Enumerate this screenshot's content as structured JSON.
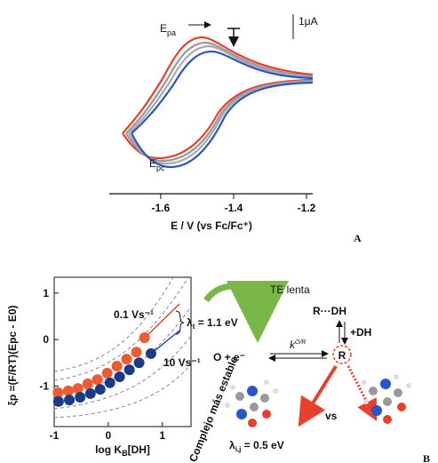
{
  "chart_data": [
    {
      "type": "cv",
      "xlabel": "E / V (vs Fc/Fc⁺)",
      "xlim": [
        -1.741,
        -1.183
      ],
      "xticks": [
        -1.6,
        -1.4,
        -1.2
      ],
      "scale_bar": "1μA",
      "epa": {
        "base": "E",
        "sub": "pa"
      },
      "epc": {
        "base": "E",
        "sub": "pc"
      },
      "panel_label": "A"
    },
    {
      "type": "scatter",
      "xlabel": {
        "base": "log K",
        "sub": "B",
        "rest": "[DH]"
      },
      "ylabel": "ξp =(F/RT)(Epc - E0)",
      "xlim": [
        -1.0,
        1.53
      ],
      "ylim": [
        -1.87,
        1.34
      ],
      "xticks": [
        -1,
        0,
        1
      ],
      "yticks": [
        -1,
        0,
        1
      ],
      "series": [
        {
          "name": "0.1 Vs⁻¹",
          "color": "#f05a30",
          "x": [
            -0.93,
            -0.74,
            -0.56,
            -0.38,
            -0.2,
            -0.02,
            0.16,
            0.34,
            0.52,
            0.67
          ],
          "values": [
            -1.14,
            -1.1,
            -1.05,
            -0.95,
            -0.86,
            -0.72,
            -0.57,
            -0.42,
            -0.27,
            0.04
          ]
        },
        {
          "name": "10 Vs⁻¹",
          "color": "#1a3a8a",
          "x": [
            -0.92,
            -0.72,
            -0.52,
            -0.33,
            -0.15,
            0.03,
            0.21,
            0.39,
            0.57,
            0.79
          ],
          "values": [
            -1.33,
            -1.3,
            -1.24,
            -1.16,
            -1.07,
            -0.93,
            -0.8,
            -0.65,
            -0.5,
            -0.3
          ]
        }
      ],
      "lambda_t": {
        "base": "λ",
        "sub": "t",
        "rest": " = 1.1 eV"
      },
      "panel_label": "B"
    }
  ],
  "diagram": {
    "te_lenta": "TE lenta",
    "r_dh": "R···DH",
    "plus_dh": "+DH",
    "reactants": "O + e⁻",
    "rate": {
      "base": "k",
      "sub": "s",
      "sup": "O/R"
    },
    "product": "R",
    "stable_label": "Complejo más estable",
    "vs": "vs",
    "lambda_ij": {
      "base": "λ",
      "sub": "i,j",
      "rest": " = 0.5 eV"
    }
  }
}
